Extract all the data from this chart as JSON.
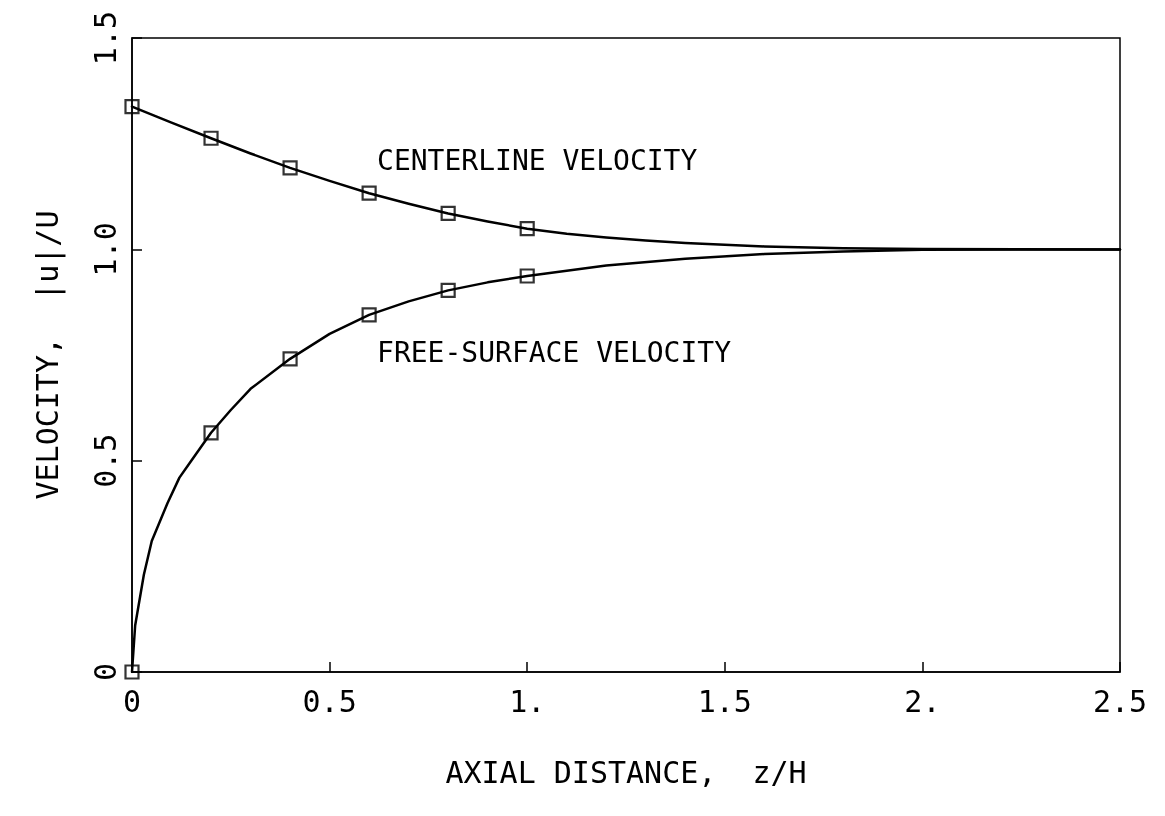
{
  "chart_data": {
    "type": "line",
    "xlabel": "AXIAL DISTANCE,  z/H",
    "ylabel": "VELOCITY,  |u|/U",
    "xlim": [
      0,
      2.5
    ],
    "ylim": [
      0,
      1.5
    ],
    "xticks": [
      0,
      0.5,
      {
        "value": 1,
        "label": "1."
      },
      1.5,
      {
        "value": 2,
        "label": "2."
      },
      2.5
    ],
    "yticks": [
      0,
      0.5,
      {
        "value": 1,
        "label": "1.0"
      },
      1.5
    ],
    "grid": false,
    "series": [
      {
        "type": "line",
        "color": "#000000",
        "marker": "none",
        "line_style": "solid",
        "x": [
          0,
          0.1,
          0.2,
          0.3,
          0.4,
          0.5,
          0.6,
          0.7,
          0.8,
          0.9,
          1.0,
          1.1,
          1.2,
          1.3,
          1.4,
          1.6,
          1.8,
          2.0,
          2.5
        ],
        "values": [
          1.338,
          1.3,
          1.263,
          1.227,
          1.193,
          1.162,
          1.133,
          1.108,
          1.085,
          1.066,
          1.049,
          1.037,
          1.028,
          1.021,
          1.015,
          1.007,
          1.003,
          1.001,
          1.0
        ]
      },
      {
        "type": "line",
        "color": "#000000",
        "marker": "none",
        "line_style": "solid",
        "x": [
          0,
          0.008,
          0.03,
          0.05,
          0.09,
          0.12,
          0.15,
          0.2,
          0.25,
          0.3,
          0.4,
          0.5,
          0.6,
          0.7,
          0.8,
          0.9,
          1.0,
          1.2,
          1.4,
          1.6,
          1.8,
          2.0,
          2.5
        ],
        "values": [
          0,
          0.11,
          0.23,
          0.31,
          0.4,
          0.46,
          0.5,
          0.566,
          0.62,
          0.67,
          0.741,
          0.8,
          0.845,
          0.877,
          0.903,
          0.922,
          0.937,
          0.962,
          0.978,
          0.989,
          0.995,
          0.999,
          1.0
        ]
      },
      {
        "type": "scatter",
        "color": "#000000",
        "marker": "square",
        "x": [
          0,
          0.2,
          0.4,
          0.6,
          0.8,
          1.0
        ],
        "values": [
          1.338,
          1.263,
          1.193,
          1.133,
          1.085,
          1.049
        ]
      },
      {
        "type": "scatter",
        "color": "#000000",
        "marker": "square",
        "x": [
          0,
          0.2,
          0.4,
          0.6,
          0.8,
          1.0
        ],
        "values": [
          0,
          0.566,
          0.741,
          0.845,
          0.903,
          0.937
        ]
      }
    ],
    "annotations": [
      "CENTERLINE VELOCITY",
      "FREE-SURFACE VELOCITY"
    ]
  }
}
